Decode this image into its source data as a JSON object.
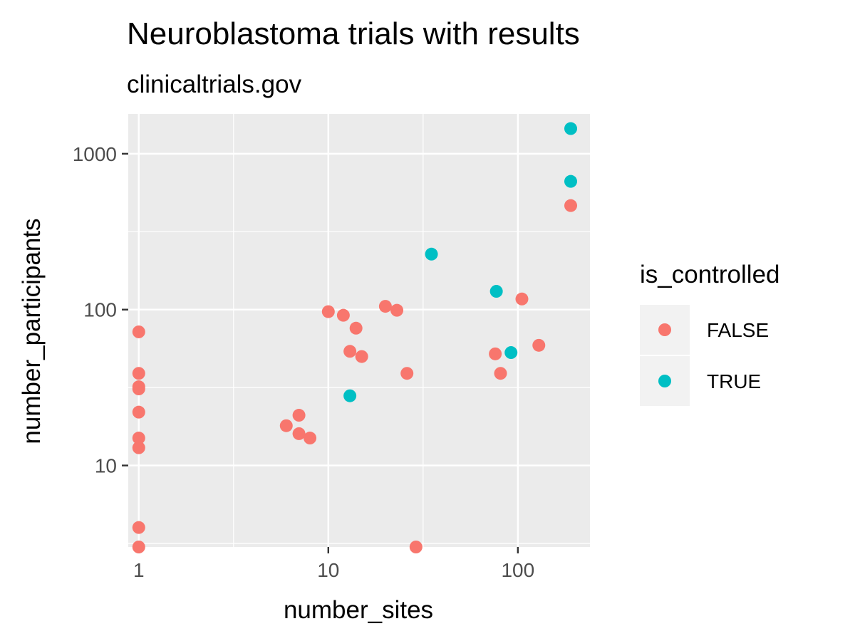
{
  "chart_data": {
    "type": "scatter",
    "title": "Neuroblastoma trials with results",
    "subtitle": "clinicaltrials.gov",
    "xlabel": "number_sites",
    "ylabel": "number_participants",
    "x_scale": "log10",
    "y_scale": "log10",
    "xlim": [
      0.88,
      240
    ],
    "ylim": [
      3,
      1800
    ],
    "x_ticks": [
      {
        "value": 1,
        "label": "1"
      },
      {
        "value": 10,
        "label": "10"
      },
      {
        "value": 100,
        "label": "100"
      }
    ],
    "y_ticks": [
      {
        "value": 10,
        "label": "10"
      },
      {
        "value": 100,
        "label": "100"
      },
      {
        "value": 1000,
        "label": "1000"
      }
    ],
    "grid": true,
    "legend": {
      "title": "is_controlled",
      "position": "right",
      "entries": [
        {
          "label": "FALSE",
          "color": "#F8766D"
        },
        {
          "label": "TRUE",
          "color": "#00BFC4"
        }
      ]
    },
    "series": [
      {
        "name": "FALSE",
        "color": "#F8766D",
        "points": [
          {
            "x": 1,
            "y": 72
          },
          {
            "x": 1,
            "y": 39
          },
          {
            "x": 1,
            "y": 32
          },
          {
            "x": 1,
            "y": 31
          },
          {
            "x": 1,
            "y": 22
          },
          {
            "x": 1,
            "y": 15
          },
          {
            "x": 1,
            "y": 13
          },
          {
            "x": 1,
            "y": 4
          },
          {
            "x": 1,
            "y": 3
          },
          {
            "x": 6,
            "y": 18
          },
          {
            "x": 7,
            "y": 21
          },
          {
            "x": 7,
            "y": 16
          },
          {
            "x": 8,
            "y": 15
          },
          {
            "x": 10,
            "y": 97
          },
          {
            "x": 12,
            "y": 92
          },
          {
            "x": 13,
            "y": 54
          },
          {
            "x": 14,
            "y": 76
          },
          {
            "x": 15,
            "y": 50
          },
          {
            "x": 20,
            "y": 105
          },
          {
            "x": 23,
            "y": 99
          },
          {
            "x": 26,
            "y": 39
          },
          {
            "x": 29,
            "y": 3
          },
          {
            "x": 76,
            "y": 52
          },
          {
            "x": 81,
            "y": 39
          },
          {
            "x": 105,
            "y": 117
          },
          {
            "x": 129,
            "y": 59
          },
          {
            "x": 190,
            "y": 465
          }
        ]
      },
      {
        "name": "TRUE",
        "color": "#00BFC4",
        "points": [
          {
            "x": 13,
            "y": 28
          },
          {
            "x": 35,
            "y": 227
          },
          {
            "x": 77,
            "y": 131
          },
          {
            "x": 92,
            "y": 53
          },
          {
            "x": 190,
            "y": 665
          },
          {
            "x": 190,
            "y": 1450
          }
        ]
      }
    ]
  }
}
